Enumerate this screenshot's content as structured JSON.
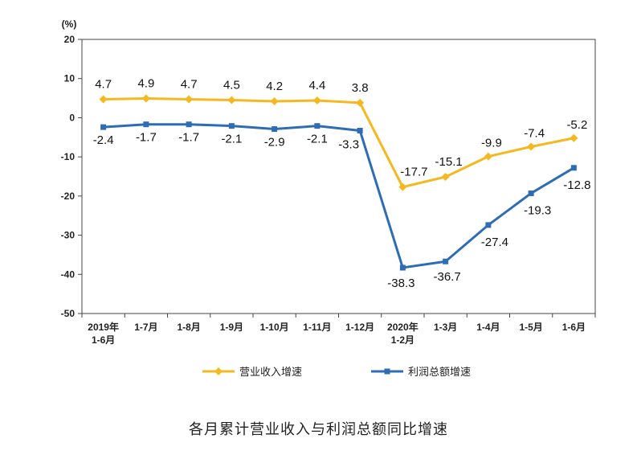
{
  "caption": "各月累计营业收入与利润总额同比增速",
  "chart_data": {
    "type": "line",
    "title": "各月累计营业收入与利润总额同比增速",
    "unit_label": "(%)",
    "categories": [
      [
        "2019年",
        "1-6月"
      ],
      [
        "1-7月"
      ],
      [
        "1-8月"
      ],
      [
        "1-9月"
      ],
      [
        "1-10月"
      ],
      [
        "1-11月"
      ],
      [
        "1-12月"
      ],
      [
        "2020年",
        "1-2月"
      ],
      [
        "1-3月"
      ],
      [
        "1-4月"
      ],
      [
        "1-5月"
      ],
      [
        "1-6月"
      ]
    ],
    "ylim": [
      -50,
      20
    ],
    "yticks": [
      20,
      10,
      0,
      -10,
      -20,
      -30,
      -40,
      -50
    ],
    "legend_position": "bottom",
    "series": [
      {
        "name": "营业收入增速",
        "color": "#f5b820",
        "marker": "diamond",
        "values": [
          4.7,
          4.9,
          4.7,
          4.5,
          4.2,
          4.4,
          3.8,
          -17.7,
          -15.1,
          -9.9,
          -7.4,
          -5.2
        ],
        "labels": [
          "4.7",
          "4.9",
          "4.7",
          "4.5",
          "4.2",
          "4.4",
          "3.8",
          "-17.7",
          "-15.1",
          "-9.9",
          "-7.4",
          "-5.2"
        ]
      },
      {
        "name": "利润总额增速",
        "color": "#2e6db4",
        "marker": "square",
        "values": [
          -2.4,
          -1.7,
          -1.7,
          -2.1,
          -2.9,
          -2.1,
          -3.3,
          -38.3,
          -36.7,
          -27.4,
          -19.3,
          -12.8
        ],
        "labels": [
          "-2.4",
          "-1.7",
          "-1.7",
          "-2.1",
          "-2.9",
          "-2.1",
          "-3.3",
          "-38.3",
          "-36.7",
          "-27.4",
          "-19.3",
          "-12.8"
        ]
      }
    ]
  }
}
